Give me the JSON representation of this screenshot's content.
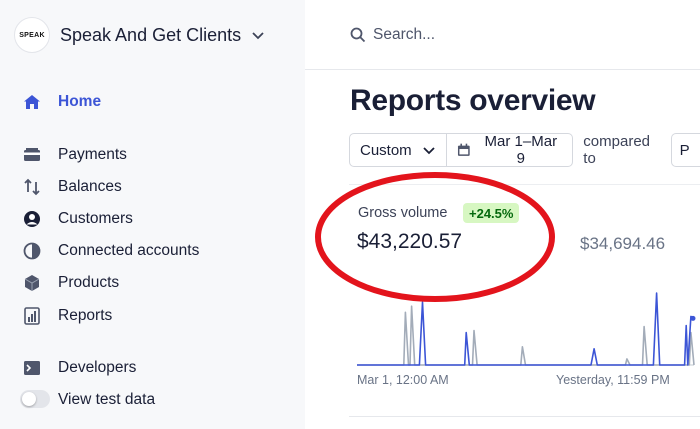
{
  "org": {
    "logo_text": "SPEAK",
    "name": "Speak And Get Clients"
  },
  "sidebar": {
    "items": [
      {
        "label": "Home",
        "icon": "home-icon",
        "active": true
      },
      {
        "label": "Payments",
        "icon": "payments-icon"
      },
      {
        "label": "Balances",
        "icon": "balances-icon"
      },
      {
        "label": "Customers",
        "icon": "customers-icon"
      },
      {
        "label": "Connected accounts",
        "icon": "connected-accounts-icon"
      },
      {
        "label": "Products",
        "icon": "products-icon"
      },
      {
        "label": "Reports",
        "icon": "reports-icon"
      },
      {
        "label": "Developers",
        "icon": "developers-icon"
      }
    ],
    "test_data_label": "View test data",
    "test_data_enabled": false
  },
  "search": {
    "placeholder": "Search..."
  },
  "main": {
    "title": "Reports overview",
    "filters": {
      "range": "Custom",
      "dates": "Mar 1–Mar 9",
      "compared_label": "compared to",
      "compare_cut": "P"
    },
    "gross_volume": {
      "label": "Gross volume",
      "change": "+24.5%",
      "value": "$43,220.57",
      "previous_value": "$34,694.46"
    },
    "axis": {
      "start": "Mar 1, 12:00 AM",
      "end": "Yesterday, 11:59 PM"
    }
  },
  "colors": {
    "accent": "#3c55d6",
    "current_series": "#3c55d6",
    "previous_series": "#a3acb9",
    "badge_bg": "#d7f7c2",
    "badge_text": "#05690d",
    "annotation": "#e3141c"
  },
  "chart_data": {
    "type": "line",
    "x_unit": "hour",
    "x_range": [
      0,
      216
    ],
    "series": [
      {
        "values": [
          [
            0,
            0
          ],
          [
            40,
            0
          ],
          [
            42,
            62
          ],
          [
            44,
            0
          ],
          [
            69,
            0
          ],
          [
            70,
            32
          ],
          [
            72,
            0
          ],
          [
            150,
            0
          ],
          [
            152,
            16
          ],
          [
            154,
            0
          ],
          [
            190,
            0
          ],
          [
            192,
            71
          ],
          [
            194,
            0
          ],
          [
            210,
            0
          ],
          [
            211,
            39
          ],
          [
            212,
            0
          ],
          [
            214,
            48
          ],
          [
            216,
            46
          ]
        ]
      },
      {
        "values": [
          [
            0,
            0
          ],
          [
            30,
            0
          ],
          [
            31,
            52
          ],
          [
            33,
            0
          ],
          [
            34,
            0
          ],
          [
            35,
            58
          ],
          [
            37,
            0
          ],
          [
            74,
            0
          ],
          [
            75,
            34
          ],
          [
            77,
            0
          ],
          [
            105,
            0
          ],
          [
            106,
            18
          ],
          [
            108,
            0
          ],
          [
            172,
            0
          ],
          [
            173,
            6
          ],
          [
            175,
            0
          ],
          [
            183,
            0
          ],
          [
            184,
            38
          ],
          [
            186,
            0
          ],
          [
            213,
            0
          ],
          [
            214,
            32
          ],
          [
            216,
            0
          ]
        ]
      }
    ],
    "ylim": [
      0,
      75
    ],
    "grid": false
  }
}
